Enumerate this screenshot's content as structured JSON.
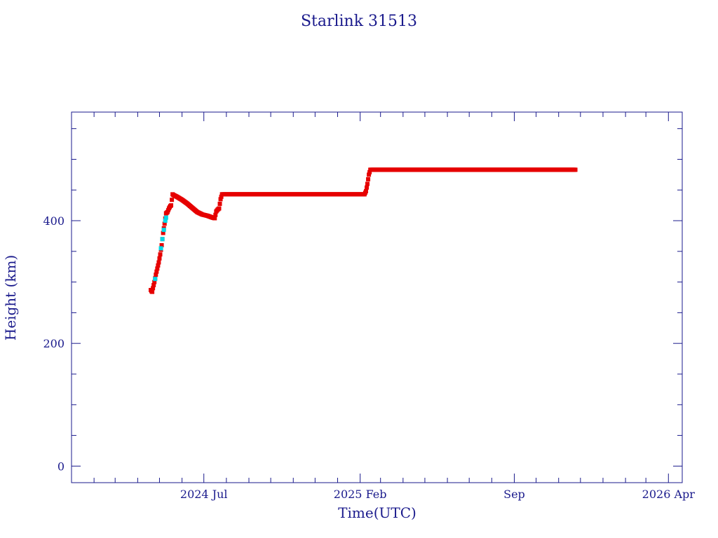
{
  "chart_data": {
    "type": "scatter",
    "title": "Starlink 31513",
    "xlabel": "Time(UTC)",
    "ylabel": "Height (km)",
    "x_is_date": true,
    "xlim": [
      "2024-01-01",
      "2026-04-20"
    ],
    "ylim": [
      -27,
      577
    ],
    "y_ticks": [
      0,
      200,
      400
    ],
    "x_tick_labels": [
      {
        "date": "2024-07-01",
        "label": "2024 Jul"
      },
      {
        "date": "2025-02-01",
        "label": "2025 Feb"
      },
      {
        "date": "2025-09-01",
        "label": "Sep"
      },
      {
        "date": "2026-04-01",
        "label": "2026 Apr"
      }
    ],
    "grid": false,
    "colors": {
      "axis": "#1a1a8c",
      "text": "#1a1a8c",
      "primary_series": "#e60000",
      "secondary_series": "#00d8e8"
    },
    "series": [
      {
        "color": "#e60000",
        "style": "markers",
        "points": [
          [
            "2024-04-19",
            287
          ],
          [
            "2024-04-20",
            285
          ],
          [
            "2024-04-21",
            284
          ],
          [
            "2024-04-22",
            290
          ],
          [
            "2024-04-24",
            300
          ],
          [
            "2024-04-26",
            312
          ],
          [
            "2024-04-28",
            322
          ],
          [
            "2024-04-30",
            332
          ],
          [
            "2024-05-02",
            345
          ],
          [
            "2024-05-04",
            360
          ],
          [
            "2024-05-06",
            380
          ],
          [
            "2024-05-08",
            395
          ],
          [
            "2024-05-10",
            412
          ],
          [
            "2024-05-12",
            414
          ],
          [
            "2024-05-14",
            420
          ],
          [
            "2024-05-16",
            424
          ],
          [
            "2024-05-17",
            425
          ],
          [
            "2024-05-19",
            443
          ],
          [
            "2024-05-20",
            442
          ],
          [
            "2024-05-25",
            439
          ],
          [
            "2024-06-01",
            434
          ],
          [
            "2024-06-08",
            428
          ],
          [
            "2024-06-15",
            421
          ],
          [
            "2024-06-22",
            414
          ],
          [
            "2024-06-29",
            410
          ],
          [
            "2024-07-06",
            408
          ],
          [
            "2024-07-13",
            405
          ],
          [
            "2024-07-16",
            404
          ],
          [
            "2024-07-18",
            415
          ],
          [
            "2024-07-20",
            418
          ],
          [
            "2024-07-22",
            420
          ],
          [
            "2024-07-24",
            435
          ],
          [
            "2024-07-26",
            443
          ],
          [
            "2024-08-10",
            443
          ],
          [
            "2024-09-01",
            443
          ],
          [
            "2024-10-01",
            443
          ],
          [
            "2024-11-01",
            443
          ],
          [
            "2024-12-01",
            443
          ],
          [
            "2025-01-01",
            443
          ],
          [
            "2025-01-20",
            443
          ],
          [
            "2025-02-01",
            443
          ],
          [
            "2025-02-07",
            443
          ],
          [
            "2025-02-09",
            448
          ],
          [
            "2025-02-11",
            460
          ],
          [
            "2025-02-13",
            475
          ],
          [
            "2025-02-15",
            483
          ],
          [
            "2025-03-01",
            483
          ],
          [
            "2025-04-01",
            483
          ],
          [
            "2025-05-01",
            483
          ],
          [
            "2025-06-01",
            483
          ],
          [
            "2025-07-01",
            483
          ],
          [
            "2025-08-01",
            483
          ],
          [
            "2025-09-01",
            483
          ],
          [
            "2025-10-01",
            483
          ],
          [
            "2025-11-01",
            483
          ],
          [
            "2025-11-24",
            483
          ]
        ]
      },
      {
        "color": "#00d8e8",
        "style": "markers",
        "points": [
          [
            "2024-04-25",
            305
          ],
          [
            "2024-05-03",
            355
          ],
          [
            "2024-05-05",
            370
          ],
          [
            "2024-05-07",
            385
          ],
          [
            "2024-05-09",
            400
          ],
          [
            "2024-05-10",
            405
          ]
        ]
      }
    ]
  }
}
